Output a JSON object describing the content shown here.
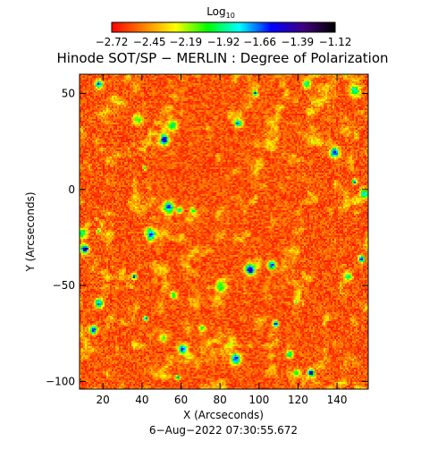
{
  "chart_data": {
    "type": "heatmap",
    "title": "Hinode SOT/SP − MERLIN : Degree of Polarization",
    "xlabel": "X (Arcseconds)",
    "ylabel": "Y (Arcseconds)",
    "timestamp": "6−Aug−2022 07:30:55.672",
    "xlim": [
      8,
      156
    ],
    "ylim": [
      -104,
      60
    ],
    "x_ticks": [
      20,
      40,
      60,
      80,
      100,
      120,
      140
    ],
    "y_ticks": [
      -100,
      -50,
      0,
      50
    ],
    "x_tick_labels": [
      "20",
      "40",
      "60",
      "80",
      "100",
      "120",
      "140"
    ],
    "y_tick_labels": [
      "−100",
      "−50",
      "0",
      "50"
    ],
    "colorbar": {
      "title_base": "Log",
      "title_sub": "10",
      "range": [
        -2.72,
        -1.12
      ],
      "ticks": [
        -2.72,
        -2.45,
        -2.19,
        -1.92,
        -1.66,
        -1.39,
        -1.12
      ],
      "tick_labels": [
        "−2.72",
        "−2.45",
        "−2.19",
        "−1.92",
        "−1.66",
        "−1.39",
        "−1.12"
      ],
      "colors": [
        "#ff0000",
        "#ff8000",
        "#ffff00",
        "#00ff00",
        "#00ffff",
        "#0000ff",
        "#400080",
        "#000000"
      ]
    },
    "pattern": "noise field dominated by log values near -2.6 (red/orange), with scattered yellow-green patches and small blue/black network elements"
  }
}
